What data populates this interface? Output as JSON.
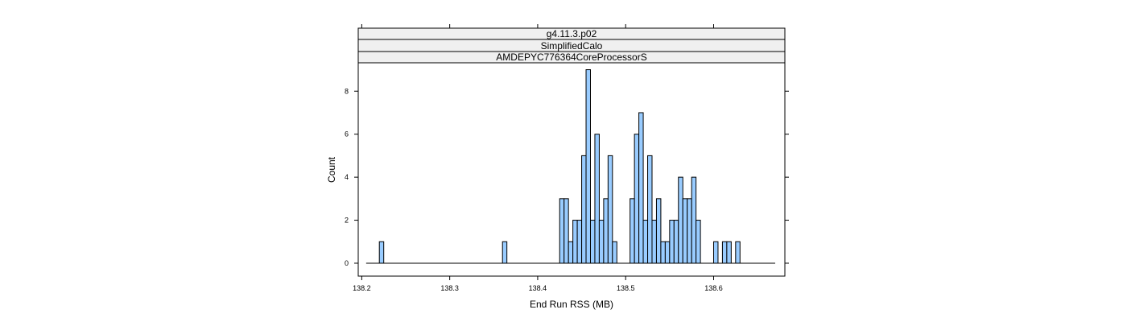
{
  "strips": [
    "g4.11.3.p02",
    "SimplifiedCalo",
    "AMDEPYC776364CoreProcessorS"
  ],
  "colors": {
    "bar_fill": "#99ccff",
    "bar_stroke": "#000000",
    "strip_fill": "#f0f0f0",
    "frame": "#000000"
  },
  "chart_data": {
    "type": "bar",
    "title": "",
    "xlabel": "End Run RSS (MB)",
    "ylabel": "Count",
    "xlim": [
      138.196,
      138.681
    ],
    "ylim": [
      -0.6,
      9.32
    ],
    "x_ticks": [
      138.2,
      138.3,
      138.4,
      138.5,
      138.6
    ],
    "x_tick_labels": [
      "138.2",
      "138.3",
      "138.4",
      "138.5",
      "138.6"
    ],
    "y_ticks": [
      0,
      2,
      4,
      6,
      8
    ],
    "y_tick_labels": [
      "0",
      "2",
      "4",
      "6",
      "8"
    ],
    "bin_width": 0.005,
    "bin_range": [
      138.205,
      138.67
    ],
    "bins": [
      {
        "x0": 138.22,
        "count": 1
      },
      {
        "x0": 138.36,
        "count": 1
      },
      {
        "x0": 138.425,
        "count": 3
      },
      {
        "x0": 138.43,
        "count": 3
      },
      {
        "x0": 138.435,
        "count": 1
      },
      {
        "x0": 138.44,
        "count": 2
      },
      {
        "x0": 138.445,
        "count": 2
      },
      {
        "x0": 138.45,
        "count": 5
      },
      {
        "x0": 138.455,
        "count": 9
      },
      {
        "x0": 138.46,
        "count": 2
      },
      {
        "x0": 138.465,
        "count": 6
      },
      {
        "x0": 138.47,
        "count": 2
      },
      {
        "x0": 138.475,
        "count": 3
      },
      {
        "x0": 138.48,
        "count": 5
      },
      {
        "x0": 138.485,
        "count": 1
      },
      {
        "x0": 138.505,
        "count": 3
      },
      {
        "x0": 138.51,
        "count": 6
      },
      {
        "x0": 138.515,
        "count": 7
      },
      {
        "x0": 138.52,
        "count": 2
      },
      {
        "x0": 138.525,
        "count": 5
      },
      {
        "x0": 138.53,
        "count": 2
      },
      {
        "x0": 138.535,
        "count": 3
      },
      {
        "x0": 138.54,
        "count": 1
      },
      {
        "x0": 138.545,
        "count": 1
      },
      {
        "x0": 138.55,
        "count": 2
      },
      {
        "x0": 138.555,
        "count": 2
      },
      {
        "x0": 138.56,
        "count": 4
      },
      {
        "x0": 138.565,
        "count": 3
      },
      {
        "x0": 138.57,
        "count": 3
      },
      {
        "x0": 138.575,
        "count": 4
      },
      {
        "x0": 138.58,
        "count": 2
      },
      {
        "x0": 138.6,
        "count": 1
      },
      {
        "x0": 138.61,
        "count": 1
      },
      {
        "x0": 138.615,
        "count": 1
      },
      {
        "x0": 138.625,
        "count": 1
      }
    ]
  }
}
